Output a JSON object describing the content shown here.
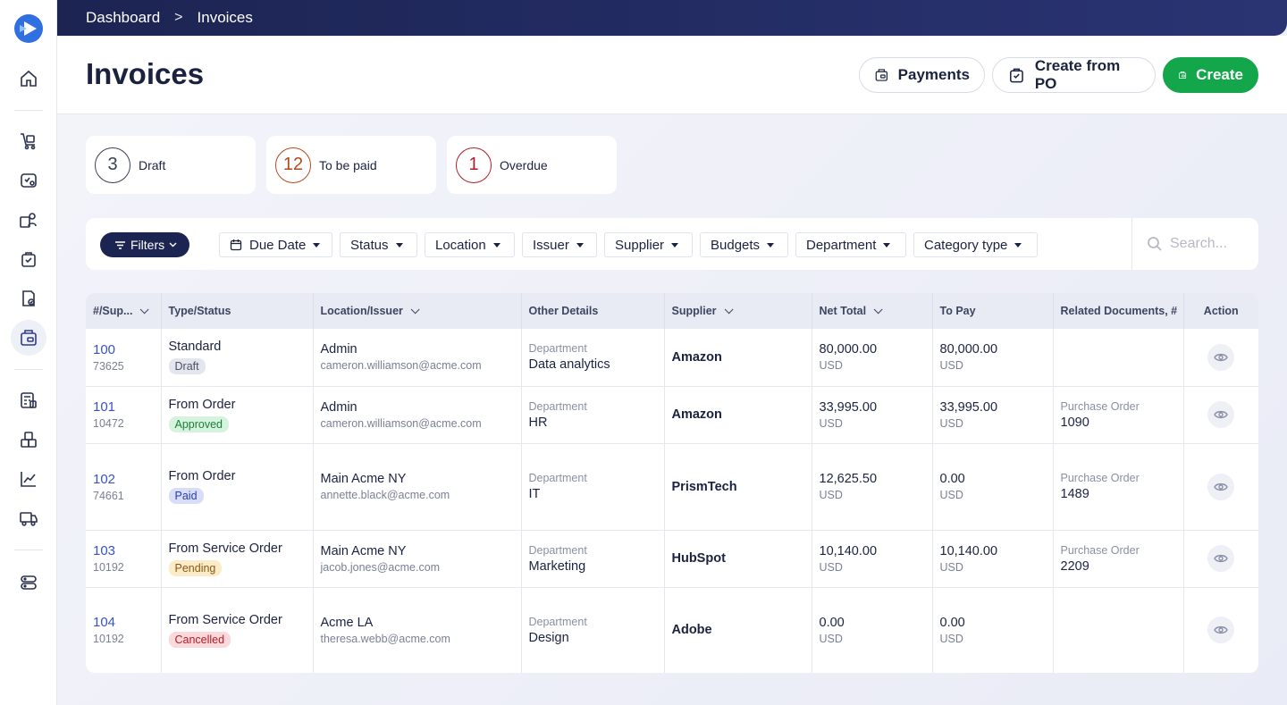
{
  "breadcrumb": {
    "root": "Dashboard",
    "separator": ">",
    "current": "Invoices"
  },
  "header": {
    "title": "Invoices",
    "payments_label": "Payments",
    "create_from_po_label": "Create from PO",
    "create_label": "Create"
  },
  "stats": [
    {
      "count": "3",
      "label": "Draft"
    },
    {
      "count": "12",
      "label": "To be paid"
    },
    {
      "count": "1",
      "label": "Overdue"
    }
  ],
  "filters": {
    "filters_label": "Filters",
    "dropdowns": [
      "Due Date",
      "Status",
      "Location",
      "Issuer",
      "Supplier",
      "Budgets",
      "Department",
      "Category type"
    ],
    "search_placeholder": "Search..."
  },
  "table": {
    "columns": [
      "#/Sup...",
      "Type/Status",
      "Location/Issuer",
      "Other Details",
      "Supplier",
      "Net Total",
      "To Pay",
      "Related Documents, #",
      "Action"
    ],
    "rows": [
      {
        "id": "100",
        "sup": "73625",
        "type": "Standard",
        "status": "Draft",
        "location": "Admin",
        "issuer": "cameron.williamson@acme.com",
        "detail_label": "Department",
        "detail_value": "Data analytics",
        "supplier": "Amazon",
        "net": "80,000.00",
        "net_cur": "USD",
        "to_pay": "80,000.00",
        "pay_cur": "USD",
        "doc_label": "",
        "doc_value": ""
      },
      {
        "id": "101",
        "sup": "10472",
        "type": "From Order",
        "status": "Approved",
        "location": "Admin",
        "issuer": "cameron.williamson@acme.com",
        "detail_label": "Department",
        "detail_value": "HR",
        "supplier": "Amazon",
        "net": "33,995.00",
        "net_cur": "USD",
        "to_pay": "33,995.00",
        "pay_cur": "USD",
        "doc_label": "Purchase Order",
        "doc_value": "1090"
      },
      {
        "id": "102",
        "sup": "74661",
        "type": "From Order",
        "status": "Paid",
        "location": "Main Acme NY",
        "issuer": "annette.black@acme.com",
        "detail_label": "Department",
        "detail_value": "IT",
        "supplier": "PrismTech",
        "net": "12,625.50",
        "net_cur": "USD",
        "to_pay": "0.00",
        "pay_cur": "USD",
        "doc_label": "Purchase Order",
        "doc_value": "1489"
      },
      {
        "id": "103",
        "sup": "10192",
        "type": "From Service Order",
        "status": "Pending",
        "location": "Main Acme NY",
        "issuer": "jacob.jones@acme.com",
        "detail_label": "Department",
        "detail_value": "Marketing",
        "supplier": "HubSpot",
        "net": "10,140.00",
        "net_cur": "USD",
        "to_pay": "10,140.00",
        "pay_cur": "USD",
        "doc_label": "Purchase Order",
        "doc_value": "2209"
      },
      {
        "id": "104",
        "sup": "10192",
        "type": "From Service Order",
        "status": "Cancelled",
        "location": "Acme LA",
        "issuer": "theresa.webb@acme.com",
        "detail_label": "Department",
        "detail_value": "Design",
        "supplier": "Adobe",
        "net": "0.00",
        "net_cur": "USD",
        "to_pay": "0.00",
        "pay_cur": "USD",
        "doc_label": "",
        "doc_value": ""
      }
    ]
  },
  "colors": {
    "brand_navy": "#1c2452",
    "create_green": "#13a64a",
    "link_blue": "#3653c8"
  },
  "sidebar_icons": [
    "home-icon",
    "cart-icon",
    "requests-icon",
    "suppliers-icon",
    "orders-icon",
    "approvals-icon",
    "invoices-icon",
    "budgets-icon",
    "inventory-icon",
    "reports-icon",
    "delivery-icon",
    "settings-icon"
  ]
}
